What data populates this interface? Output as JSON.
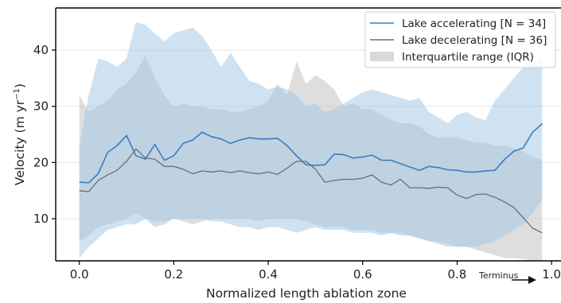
{
  "chart_data": {
    "type": "line",
    "title": "",
    "xlabel": "Normalized length ablation zone",
    "ylabel": "Velocity (m yr",
    "ylabel_sup": "−1",
    "ylabel_tail": ")",
    "xlim": [
      -0.05,
      1.02
    ],
    "ylim": [
      2.5,
      47.5
    ],
    "xticks": [
      0.0,
      0.2,
      0.4,
      0.6,
      0.8,
      1.0
    ],
    "xtick_labels": [
      "0.0",
      "0.2",
      "0.4",
      "0.6",
      "0.8",
      "1.0"
    ],
    "yticks": [
      10,
      20,
      30,
      40
    ],
    "ytick_labels": [
      "10",
      "20",
      "30",
      "40"
    ],
    "grid": "horizontal",
    "legend_placement": "top-right",
    "annotation": "Terminus",
    "colors": {
      "accelerating_line": "#3a7dc0",
      "accelerating_band": "#9ec5e6",
      "decelerating_line": "#6e6e6e",
      "decelerating_band": "#c8c8c8",
      "grid": "#e6e6e6"
    },
    "legend": [
      {
        "label": "Lake accelerating [N = 34]",
        "kind": "line",
        "color": "#3a7dc0"
      },
      {
        "label": "Lake decelerating [N = 36]",
        "kind": "line",
        "color": "#6e6e6e"
      },
      {
        "label": "Interquartile range (IQR)",
        "kind": "patch",
        "color": "#d9d9d9"
      }
    ],
    "series": [
      {
        "name": "Lake accelerating [N = 34]",
        "x": [
          0.0,
          0.02,
          0.04,
          0.06,
          0.08,
          0.1,
          0.12,
          0.14,
          0.16,
          0.18,
          0.2,
          0.22,
          0.24,
          0.26,
          0.28,
          0.3,
          0.32,
          0.34,
          0.36,
          0.38,
          0.4,
          0.42,
          0.44,
          0.46,
          0.48,
          0.5,
          0.52,
          0.54,
          0.56,
          0.58,
          0.6,
          0.62,
          0.64,
          0.66,
          0.68,
          0.7,
          0.72,
          0.74,
          0.76,
          0.78,
          0.8,
          0.82,
          0.84,
          0.86,
          0.88,
          0.9,
          0.92,
          0.94,
          0.96,
          0.98
        ],
        "median": [
          16.5,
          16.4,
          18.0,
          21.8,
          23.0,
          24.8,
          21.2,
          20.6,
          23.2,
          20.4,
          21.2,
          23.4,
          24.0,
          25.4,
          24.6,
          24.2,
          23.4,
          24.0,
          24.4,
          24.2,
          24.2,
          24.3,
          23.0,
          21.2,
          19.6,
          19.5,
          19.6,
          21.5,
          21.4,
          20.8,
          21.0,
          21.3,
          20.4,
          20.4,
          19.8,
          19.2,
          18.6,
          19.3,
          19.1,
          18.7,
          18.6,
          18.3,
          18.3,
          18.5,
          18.6,
          20.5,
          22.0,
          22.6,
          25.4,
          26.9
        ],
        "q1": [
          3.0,
          5.0,
          6.5,
          8.0,
          8.5,
          9.0,
          9.0,
          10.0,
          8.5,
          9.0,
          10.0,
          10.0,
          10.0,
          10.0,
          9.5,
          9.5,
          9.0,
          8.5,
          8.5,
          8.0,
          8.5,
          8.5,
          8.0,
          7.5,
          8.0,
          8.5,
          8.0,
          8.0,
          8.0,
          7.5,
          7.5,
          7.5,
          7.0,
          7.5,
          7.0,
          7.0,
          6.5,
          6.0,
          5.5,
          5.0,
          5.0,
          5.0,
          5.0,
          5.5,
          6.0,
          7.0,
          8.0,
          9.0,
          11.0,
          13.5
        ],
        "q3": [
          23.0,
          32.0,
          38.5,
          38.0,
          37.0,
          38.5,
          45.0,
          44.5,
          43.0,
          41.5,
          43.0,
          43.5,
          44.0,
          42.5,
          40.0,
          37.0,
          39.5,
          37.0,
          34.5,
          34.0,
          33.0,
          33.5,
          33.0,
          32.0,
          30.0,
          30.5,
          29.0,
          29.5,
          30.5,
          31.5,
          32.5,
          33.0,
          32.5,
          32.0,
          31.5,
          31.0,
          31.5,
          29.0,
          28.0,
          27.0,
          28.5,
          29.0,
          28.0,
          27.5,
          31.0,
          33.0,
          35.0,
          37.0,
          38.0,
          39.0
        ]
      },
      {
        "name": "Lake decelerating [N = 36]",
        "x": [
          0.0,
          0.02,
          0.04,
          0.06,
          0.08,
          0.1,
          0.12,
          0.14,
          0.16,
          0.18,
          0.2,
          0.22,
          0.24,
          0.26,
          0.28,
          0.3,
          0.32,
          0.34,
          0.36,
          0.38,
          0.4,
          0.42,
          0.44,
          0.46,
          0.48,
          0.5,
          0.52,
          0.54,
          0.56,
          0.58,
          0.6,
          0.62,
          0.64,
          0.66,
          0.68,
          0.7,
          0.72,
          0.74,
          0.76,
          0.78,
          0.8,
          0.82,
          0.84,
          0.86,
          0.88,
          0.9,
          0.92,
          0.94,
          0.96,
          0.98
        ],
        "median": [
          15.0,
          14.8,
          16.8,
          17.8,
          18.6,
          20.2,
          22.4,
          20.8,
          20.6,
          19.3,
          19.3,
          18.8,
          18.0,
          18.5,
          18.3,
          18.5,
          18.2,
          18.5,
          18.2,
          18.0,
          18.3,
          17.9,
          19.0,
          20.2,
          20.2,
          18.8,
          16.5,
          16.8,
          17.0,
          17.0,
          17.2,
          17.8,
          16.5,
          16.0,
          17.0,
          15.5,
          15.5,
          15.4,
          15.6,
          15.5,
          14.2,
          13.6,
          14.3,
          14.4,
          13.8,
          13.0,
          12.0,
          10.2,
          8.3,
          7.5
        ],
        "q1": [
          6.0,
          7.0,
          8.5,
          9.0,
          9.5,
          10.0,
          11.0,
          10.0,
          9.5,
          9.5,
          10.0,
          9.5,
          9.0,
          9.5,
          10.0,
          10.0,
          10.0,
          10.0,
          10.0,
          9.5,
          10.0,
          10.0,
          10.0,
          10.0,
          9.5,
          9.0,
          8.5,
          8.5,
          8.5,
          8.0,
          8.0,
          8.0,
          7.5,
          7.5,
          7.5,
          7.0,
          6.5,
          6.0,
          6.0,
          5.5,
          5.0,
          5.0,
          4.5,
          4.0,
          3.5,
          3.0,
          3.0,
          2.8,
          2.6,
          2.5
        ],
        "q3": [
          32.0,
          29.0,
          30.0,
          31.0,
          33.0,
          34.0,
          36.0,
          39.0,
          35.0,
          32.0,
          30.0,
          30.5,
          30.0,
          30.0,
          29.5,
          29.5,
          29.0,
          29.0,
          29.5,
          30.0,
          31.0,
          34.0,
          32.0,
          38.0,
          34.0,
          35.5,
          34.5,
          33.0,
          30.0,
          30.5,
          29.5,
          29.5,
          28.5,
          27.5,
          27.0,
          27.0,
          26.5,
          25.0,
          24.5,
          24.5,
          24.5,
          24.0,
          23.5,
          23.5,
          23.0,
          23.0,
          22.5,
          22.0,
          21.0,
          20.5
        ]
      }
    ]
  }
}
